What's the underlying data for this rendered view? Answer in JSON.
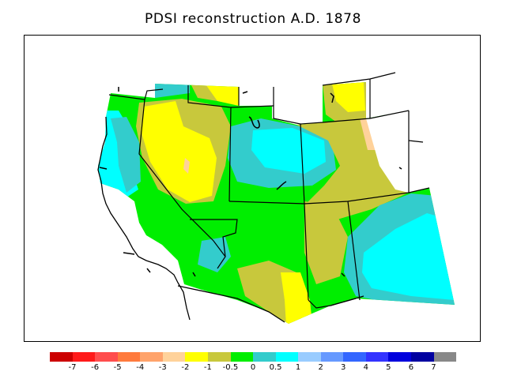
{
  "title": "PDSI reconstruction A.D. 1878",
  "colors": {
    "outside": "#ffffff",
    "border": "#000000",
    "coast": "#000000"
  },
  "legend": {
    "swatches": [
      "#cc0000",
      "#ff1a1a",
      "#ff4d4d",
      "#ff7a3d",
      "#ffa36b",
      "#ffd29a",
      "#ffff00",
      "#c8c83c",
      "#00ee00",
      "#33cccc",
      "#00ffff",
      "#99ccff",
      "#6699ff",
      "#3366ff",
      "#3333ff",
      "#0000dd",
      "#0000a0",
      "#888888"
    ],
    "labels": [
      "-7",
      "-6",
      "-5",
      "-4",
      "-3",
      "-2",
      "-1",
      "-0.5",
      "0",
      "0.5",
      "1",
      "2",
      "3",
      "4",
      "5",
      "6",
      "7"
    ]
  }
}
